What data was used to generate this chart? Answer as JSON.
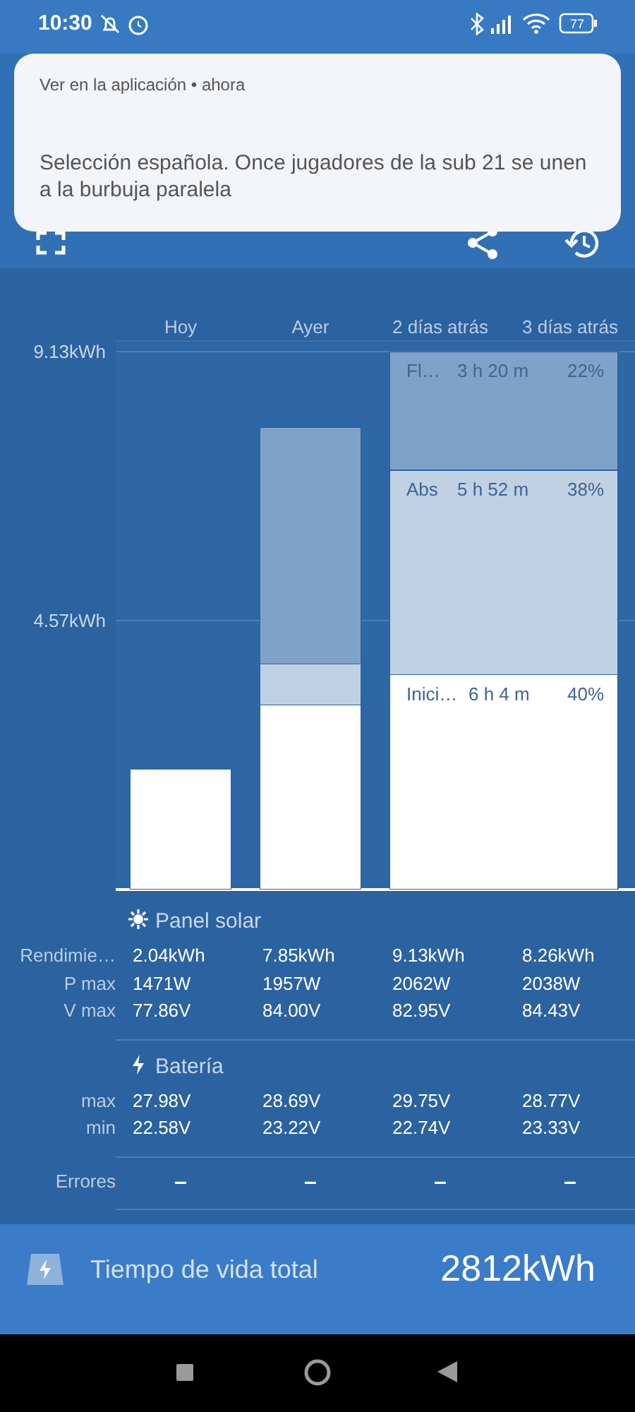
{
  "chart_data": [
    {
      "type": "other",
      "annotations": [
        "10:30",
        "77",
        "Ver en la aplicación • ahora",
        "Selección española. Once jugadores de la sub 21 se unen a la burbuja paralela"
      ]
    },
    {
      "type": "bar",
      "categories": [
        "Hoy",
        "Ayer",
        "2 días atrás",
        "3 días atrás"
      ],
      "stacked": true,
      "series": [
        {
          "color": "#ffffff",
          "values": [
            2.04,
            3.13,
            3.65,
            null
          ]
        },
        {
          "color": "#c1d1e4",
          "values": [
            null,
            0.7,
            3.47,
            null
          ]
        },
        {
          "color": "#7fa3c8",
          "values": [
            null,
            4.02,
            2.01,
            null
          ]
        }
      ],
      "ylim": [
        0,
        9.3
      ],
      "yticks": [
        {
          "value": 4.57,
          "label": "4.57kWh"
        },
        {
          "value": 9.13,
          "label": "9.13kWh"
        }
      ],
      "grid": "y",
      "annotations": [
        {
          "text": "Inici…",
          "x": "2 días atrás",
          "y": 3.65
        },
        {
          "text": "6 h 4 m",
          "x": "2 días atrás",
          "y": 3.65
        },
        {
          "text": "40%",
          "x": "3 días atrás",
          "y": 3.65
        },
        {
          "text": "Abs",
          "x": "2 días atrás",
          "y": 7.12
        },
        {
          "text": "5 h 52 m",
          "x": "2 días atrás",
          "y": 7.12
        },
        {
          "text": "38%",
          "x": "3 días atrás",
          "y": 7.12
        },
        {
          "text": "Fl…",
          "x": "2 días atrás",
          "y": 9.13
        },
        {
          "text": "3 h 20 m",
          "x": "2 días atrás",
          "y": 9.13
        },
        {
          "text": "22%",
          "x": "3 días atrás",
          "y": 9.13
        }
      ]
    },
    {
      "type": "other",
      "title": "Panel solar",
      "annotations": [
        "Rendimie…",
        "2.04kWh",
        "7.85kWh",
        "9.13kWh",
        "8.26kWh",
        "P max",
        "1471W",
        "1957W",
        "2062W",
        "2038W",
        "V max",
        "77.86V",
        "84.00V",
        "82.95V",
        "84.43V"
      ]
    },
    {
      "type": "other",
      "title": "Batería",
      "annotations": [
        "max",
        "27.98V",
        "28.69V",
        "29.75V",
        "28.77V",
        "min",
        "22.58V",
        "23.22V",
        "22.74V",
        "23.33V"
      ]
    },
    {
      "type": "other",
      "annotations": [
        "Errores",
        "–",
        "–",
        "–",
        "–"
      ]
    },
    {
      "type": "other",
      "annotations": [
        "Tiempo de vida total",
        "2812kWh"
      ]
    }
  ]
}
